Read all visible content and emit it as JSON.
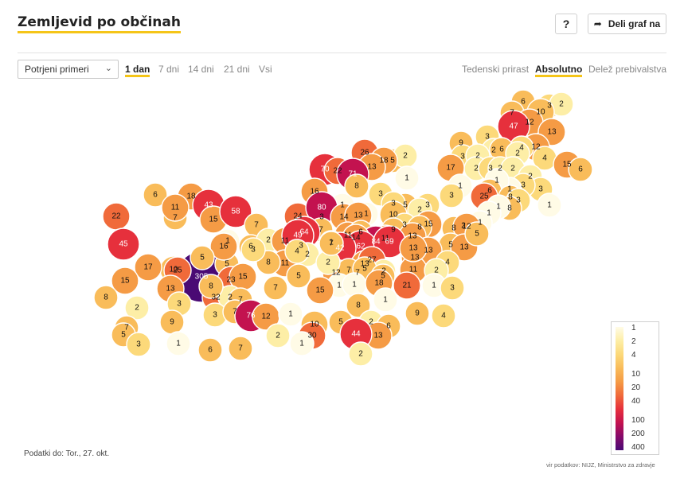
{
  "header": {
    "title": "Zemljevid po občinah",
    "help_label": "?",
    "share_label": "Deli graf na"
  },
  "controls": {
    "metric_select": "Potrjeni primeri",
    "periods": [
      "1 dan",
      "7 dni",
      "14 dni",
      "21 dni",
      "Vsi"
    ],
    "active_period": "1 dan",
    "modes": [
      "Tedenski prirast",
      "Absolutno",
      "Delež prebivalstva"
    ],
    "active_mode": "Absolutno"
  },
  "colors": {
    "scale": [
      "#fffbe6",
      "#fdeea6",
      "#fcd97a",
      "#f9bc5a",
      "#f59b45",
      "#f06a3a",
      "#e6303c",
      "#c3124f",
      "#860a6a",
      "#4a0a74"
    ]
  },
  "legend": {
    "ticks": [
      "1",
      "2",
      "4",
      "10",
      "20",
      "40",
      "100",
      "200",
      "400"
    ]
  },
  "map": {
    "labels": [
      "6",
      "3",
      "2",
      "7",
      "10",
      "12",
      "13",
      "47",
      "12",
      "4",
      "15",
      "6",
      "3",
      "9",
      "2",
      "4",
      "3",
      "2",
      "6",
      "2",
      "2",
      "3",
      "2",
      "17",
      "2",
      "2",
      "3",
      "3",
      "1",
      "1",
      "1",
      "6",
      "3",
      "8",
      "25",
      "3",
      "8",
      "1",
      "1",
      "1",
      "1",
      "2",
      "8",
      "12",
      "5",
      "13",
      "5",
      "5",
      "2",
      "26",
      "18",
      "70",
      "13",
      "22",
      "71",
      "16",
      "8",
      "6",
      "18",
      "43",
      "7",
      "15",
      "58",
      "11",
      "22",
      "7",
      "3",
      "1",
      "1",
      "3",
      "1",
      "3",
      "5",
      "2",
      "3",
      "15",
      "24",
      "80",
      "14",
      "7",
      "64",
      "13",
      "10",
      "3",
      "9",
      "8",
      "11",
      "6",
      "1",
      "11",
      "84",
      "14",
      "13",
      "62",
      "3",
      "1",
      "6",
      "2",
      "11",
      "49",
      "42",
      "13",
      "69",
      "13",
      "13",
      "27",
      "11",
      "2",
      "13",
      "7",
      "4",
      "2",
      "1",
      "3",
      "12",
      "2",
      "7",
      "5",
      "5",
      "305",
      "5",
      "11",
      "8",
      "3",
      "4",
      "1",
      "1",
      "2",
      "16",
      "15",
      "18",
      "21",
      "7",
      "23",
      "10",
      "45",
      "17",
      "25",
      "5",
      "13",
      "15",
      "32",
      "2",
      "7",
      "7",
      "5",
      "8",
      "3",
      "15",
      "8",
      "2",
      "9",
      "3",
      "7",
      "76",
      "12",
      "1",
      "10",
      "5",
      "8",
      "1",
      "9",
      "4",
      "7",
      "5",
      "3",
      "1",
      "6",
      "7",
      "2",
      "6",
      "13",
      "44",
      "30",
      "2",
      "1",
      "2"
    ],
    "date": "Podatki do: Tor., 27. okt.",
    "source": "vir podatkov: NIJZ, Ministrstvo za zdravje"
  }
}
